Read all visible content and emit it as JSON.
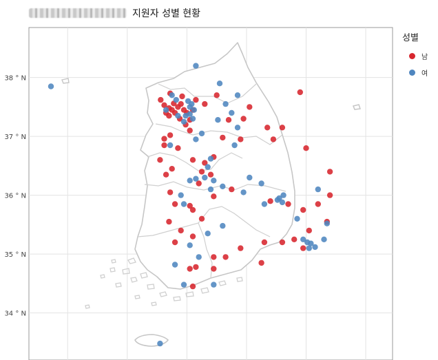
{
  "title": {
    "text": "지원자 성별 현황"
  },
  "legend": {
    "title": "성별",
    "items": [
      {
        "label": "남",
        "color": "#d7262e"
      },
      {
        "label": "여",
        "color": "#4f86bf"
      }
    ]
  },
  "axis": {
    "y_ticks": [
      "38 ° N",
      "37 ° N",
      "36 ° N",
      "35 ° N",
      "34 ° N"
    ]
  },
  "chart_data": {
    "type": "scatter",
    "map": "South Korea",
    "ylim": [
      33.2,
      38.85
    ],
    "xlim": [
      124.35,
      130.45
    ],
    "grid": true,
    "legend_position": "right",
    "series": [
      {
        "name": "남",
        "color": "#d7262e",
        "points": [
          [
            126.56,
            37.62
          ],
          [
            126.62,
            37.53
          ],
          [
            126.7,
            37.48
          ],
          [
            126.78,
            37.56
          ],
          [
            126.85,
            37.5
          ],
          [
            126.9,
            37.55
          ],
          [
            126.95,
            37.45
          ],
          [
            126.8,
            37.4
          ],
          [
            126.7,
            37.35
          ],
          [
            126.88,
            37.3
          ],
          [
            127.0,
            37.4
          ],
          [
            127.05,
            37.28
          ],
          [
            126.98,
            37.2
          ],
          [
            126.75,
            37.45
          ],
          [
            126.65,
            37.4
          ],
          [
            127.1,
            37.45
          ],
          [
            127.15,
            37.62
          ],
          [
            126.92,
            37.68
          ],
          [
            126.72,
            37.73
          ],
          [
            127.3,
            37.55
          ],
          [
            127.5,
            37.7
          ],
          [
            127.7,
            37.28
          ],
          [
            128.05,
            37.5
          ],
          [
            128.35,
            37.15
          ],
          [
            128.6,
            37.15
          ],
          [
            128.45,
            36.95
          ],
          [
            127.9,
            36.95
          ],
          [
            127.6,
            36.98
          ],
          [
            127.45,
            36.65
          ],
          [
            127.3,
            36.55
          ],
          [
            127.1,
            36.6
          ],
          [
            127.25,
            36.4
          ],
          [
            127.4,
            36.35
          ],
          [
            127.2,
            36.2
          ],
          [
            126.85,
            36.8
          ],
          [
            126.62,
            36.85
          ],
          [
            126.55,
            36.6
          ],
          [
            126.75,
            36.45
          ],
          [
            126.65,
            36.35
          ],
          [
            126.72,
            36.05
          ],
          [
            126.8,
            35.85
          ],
          [
            127.05,
            35.82
          ],
          [
            127.1,
            35.75
          ],
          [
            126.7,
            35.55
          ],
          [
            126.9,
            35.4
          ],
          [
            127.1,
            35.3
          ],
          [
            126.8,
            35.2
          ],
          [
            127.25,
            35.6
          ],
          [
            127.45,
            35.98
          ],
          [
            127.75,
            36.1
          ],
          [
            128.4,
            35.9
          ],
          [
            128.7,
            35.85
          ],
          [
            129.2,
            35.85
          ],
          [
            128.95,
            35.75
          ],
          [
            129.35,
            35.55
          ],
          [
            129.05,
            35.4
          ],
          [
            128.8,
            35.25
          ],
          [
            128.6,
            35.2
          ],
          [
            128.3,
            35.2
          ],
          [
            127.9,
            35.1
          ],
          [
            127.65,
            34.95
          ],
          [
            127.45,
            34.95
          ],
          [
            127.45,
            34.75
          ],
          [
            127.15,
            34.78
          ],
          [
            127.05,
            34.75
          ],
          [
            127.1,
            34.45
          ],
          [
            128.25,
            34.85
          ],
          [
            128.95,
            35.1
          ],
          [
            129.4,
            36.0
          ],
          [
            129.4,
            36.4
          ],
          [
            129.0,
            36.8
          ],
          [
            126.72,
            37.02
          ],
          [
            126.62,
            36.96
          ],
          [
            127.05,
            37.1
          ],
          [
            127.95,
            37.3
          ],
          [
            128.9,
            37.75
          ]
        ]
      },
      {
        "name": "여",
        "color": "#4f86bf",
        "points": [
          [
            124.72,
            37.85
          ],
          [
            127.15,
            38.2
          ],
          [
            127.55,
            37.9
          ],
          [
            127.85,
            37.7
          ],
          [
            126.75,
            37.7
          ],
          [
            126.82,
            37.62
          ],
          [
            127.02,
            37.6
          ],
          [
            127.08,
            37.55
          ],
          [
            127.05,
            37.5
          ],
          [
            127.12,
            37.45
          ],
          [
            126.98,
            37.35
          ],
          [
            127.05,
            37.38
          ],
          [
            127.1,
            37.3
          ],
          [
            126.65,
            37.45
          ],
          [
            126.85,
            37.35
          ],
          [
            126.95,
            37.25
          ],
          [
            127.75,
            37.4
          ],
          [
            127.52,
            37.28
          ],
          [
            127.25,
            37.05
          ],
          [
            126.72,
            36.85
          ],
          [
            127.15,
            36.95
          ],
          [
            127.4,
            36.62
          ],
          [
            127.35,
            36.48
          ],
          [
            127.3,
            36.3
          ],
          [
            127.15,
            36.28
          ],
          [
            127.45,
            36.25
          ],
          [
            127.6,
            36.15
          ],
          [
            127.4,
            36.1
          ],
          [
            127.05,
            36.25
          ],
          [
            126.9,
            36.0
          ],
          [
            126.95,
            35.85
          ],
          [
            128.05,
            36.3
          ],
          [
            127.95,
            36.05
          ],
          [
            128.3,
            35.85
          ],
          [
            128.55,
            35.95
          ],
          [
            128.6,
            35.88
          ],
          [
            128.52,
            35.92
          ],
          [
            128.62,
            36.0
          ],
          [
            128.85,
            35.6
          ],
          [
            128.95,
            35.25
          ],
          [
            129.02,
            35.2
          ],
          [
            129.08,
            35.18
          ],
          [
            129.15,
            35.12
          ],
          [
            129.05,
            35.1
          ],
          [
            129.3,
            35.25
          ],
          [
            129.35,
            35.52
          ],
          [
            129.2,
            36.1
          ],
          [
            128.25,
            36.2
          ],
          [
            127.6,
            35.48
          ],
          [
            127.35,
            35.35
          ],
          [
            127.05,
            35.15
          ],
          [
            127.2,
            34.95
          ],
          [
            126.8,
            34.82
          ],
          [
            127.45,
            34.48
          ],
          [
            126.95,
            34.48
          ],
          [
            126.55,
            33.48
          ],
          [
            127.8,
            36.85
          ],
          [
            127.65,
            37.55
          ],
          [
            127.85,
            37.15
          ]
        ]
      }
    ]
  }
}
